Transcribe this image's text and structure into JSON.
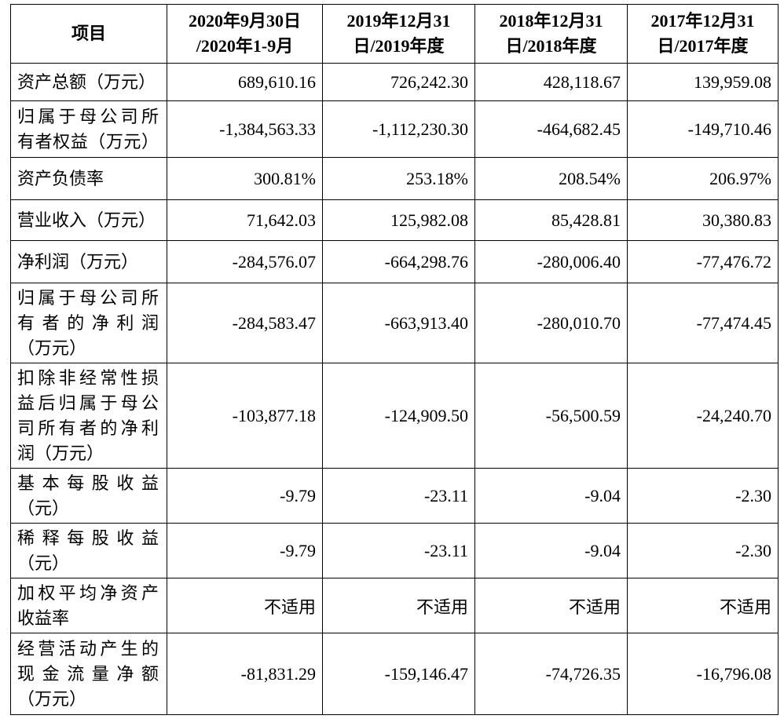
{
  "header": [
    "项目",
    "2020年9月30日\n/2020年1-9月",
    "2019年12月31\n日/2019年度",
    "2018年12月31\n日/2018年度",
    "2017年12月31\n日/2017年度"
  ],
  "rows": [
    {
      "label": [
        "资产总额（万元）"
      ],
      "values": [
        "689,610.16",
        "726,242.30",
        "428,118.67",
        "139,959.08"
      ]
    },
    {
      "label": [
        "归属于母公司所",
        "有者权益（万元）"
      ],
      "values": [
        "-1,384,563.33",
        "-1,112,230.30",
        "-464,682.45",
        "-149,710.46"
      ]
    },
    {
      "label": [
        "资产负债率"
      ],
      "values": [
        "300.81%",
        "253.18%",
        "208.54%",
        "206.97%"
      ]
    },
    {
      "label": [
        "营业收入（万元）"
      ],
      "values": [
        "71,642.03",
        "125,982.08",
        "85,428.81",
        "30,380.83"
      ]
    },
    {
      "label": [
        "净利润（万元）"
      ],
      "values": [
        "-284,576.07",
        "-664,298.76",
        "-280,006.40",
        "-77,476.72"
      ]
    },
    {
      "label": [
        "归属于母公司所",
        "有者的净利润",
        "（万元）"
      ],
      "values": [
        "-284,583.47",
        "-663,913.40",
        "-280,010.70",
        "-77,474.45"
      ]
    },
    {
      "label": [
        "扣除非经常性损",
        "益后归属于母公",
        "司所有者的净利",
        "润（万元）"
      ],
      "values": [
        "-103,877.18",
        "-124,909.50",
        "-56,500.59",
        "-24,240.70"
      ]
    },
    {
      "label": [
        "基本每股收益",
        "（元）"
      ],
      "values": [
        "-9.79",
        "-23.11",
        "-9.04",
        "-2.30"
      ]
    },
    {
      "label": [
        "稀释每股收益",
        "（元）"
      ],
      "values": [
        "-9.79",
        "-23.11",
        "-9.04",
        "-2.30"
      ]
    },
    {
      "label": [
        "加权平均净资产",
        "收益率"
      ],
      "values": [
        "不适用",
        "不适用",
        "不适用",
        "不适用"
      ]
    },
    {
      "label": [
        "经营活动产生的",
        "现金流量净额",
        "（万元）"
      ],
      "values": [
        "-81,831.29",
        "-159,146.47",
        "-74,726.35",
        "-16,796.08"
      ]
    }
  ]
}
